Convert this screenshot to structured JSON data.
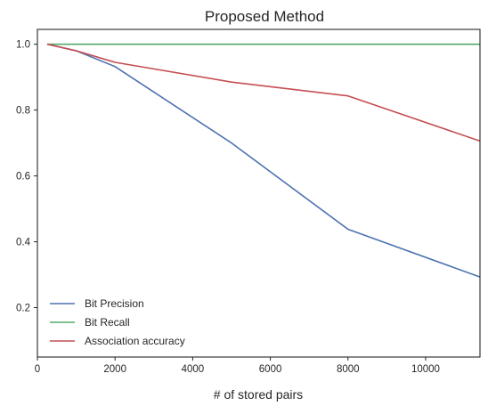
{
  "chart_data": {
    "type": "line",
    "title": "Proposed Method",
    "xlabel": "# of stored pairs",
    "ylabel": "",
    "xlim": [
      0,
      11400
    ],
    "ylim": [
      0.05,
      1.045
    ],
    "x_ticks": [
      0,
      2000,
      4000,
      6000,
      8000,
      10000
    ],
    "y_ticks": [
      0.2,
      0.4,
      0.6,
      0.8,
      1.0
    ],
    "x_tick_labels": [
      "0",
      "2000",
      "4000",
      "6000",
      "8000",
      "10000"
    ],
    "y_tick_labels": [
      "0.2",
      "0.4",
      "0.6",
      "0.8",
      "1.0"
    ],
    "grid": false,
    "legend_position": "lower-left",
    "series": [
      {
        "name": "Bit Precision",
        "color": "#4c72b0",
        "x": [
          250,
          1000,
          2000,
          5000,
          8000,
          11400
        ],
        "y": [
          1.0,
          0.98,
          0.932,
          0.7,
          0.438,
          0.293
        ]
      },
      {
        "name": "Bit Recall",
        "color": "#55a868",
        "x": [
          250,
          1000,
          2000,
          5000,
          8000,
          11400
        ],
        "y": [
          1.0,
          1.0,
          1.0,
          1.0,
          1.0,
          1.0
        ]
      },
      {
        "name": "Association accuracy",
        "color": "#c44e52",
        "x": [
          250,
          1000,
          2000,
          5000,
          8000,
          11400
        ],
        "y": [
          1.0,
          0.98,
          0.945,
          0.885,
          0.843,
          0.706
        ]
      }
    ]
  }
}
